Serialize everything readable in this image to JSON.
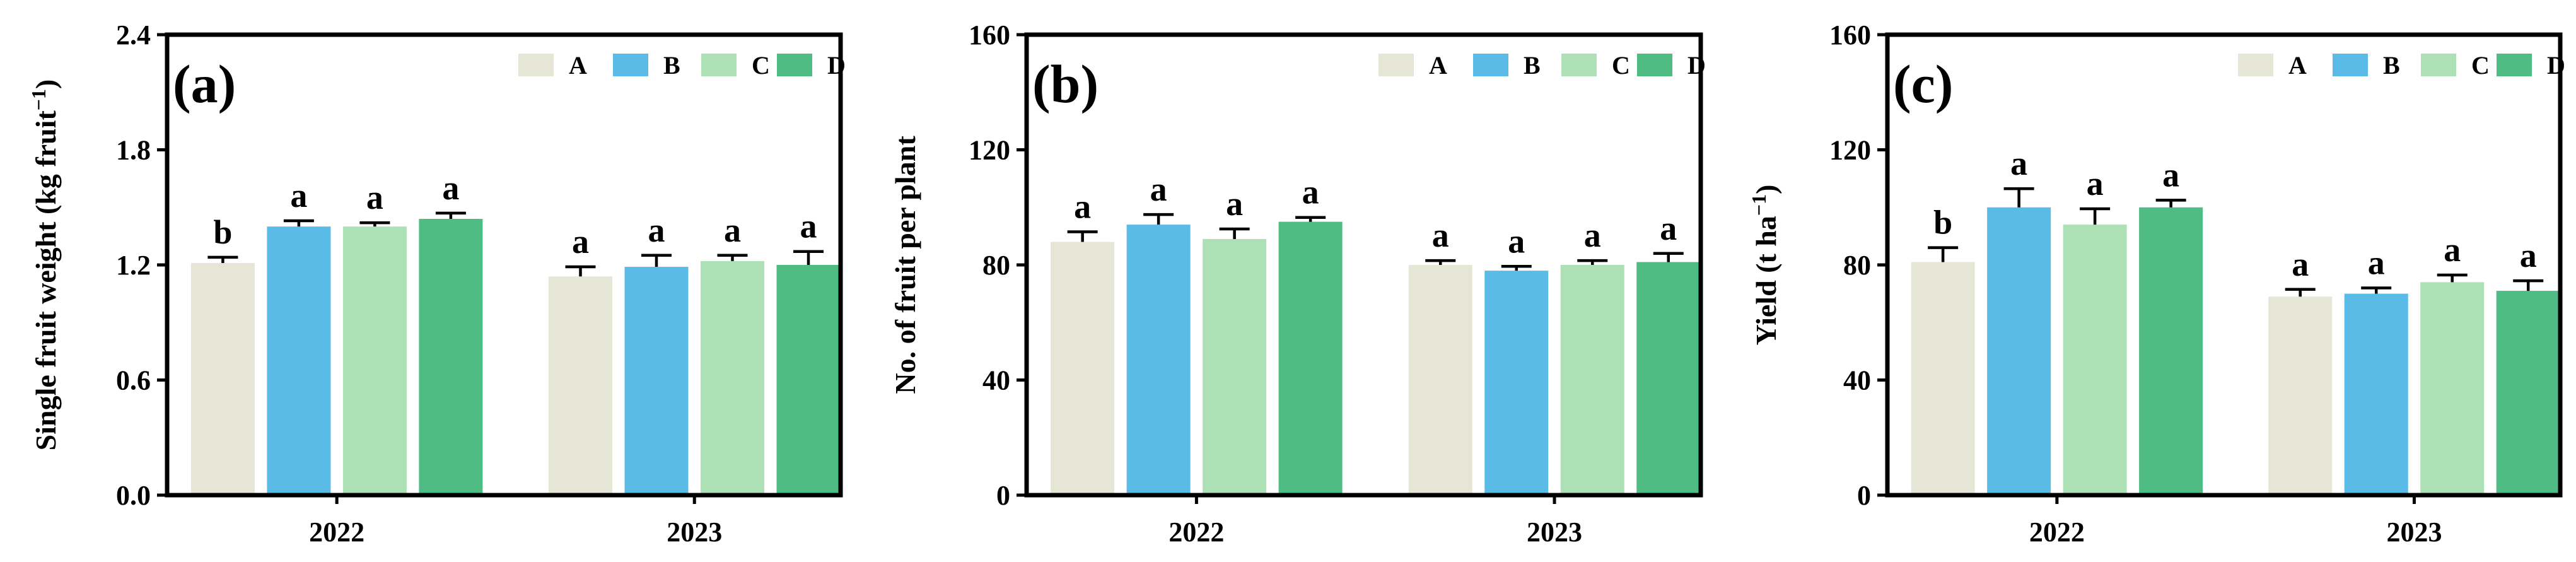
{
  "colors": {
    "A": "#e6e6d6",
    "B": "#5bbbe7",
    "C": "#ade0b5",
    "D": "#4fbc84"
  },
  "legend": [
    "A",
    "B",
    "C",
    "D"
  ],
  "panels": [
    {
      "label": "(a)",
      "ylabel": "Single fruit weight (kg fruit",
      "ylabel_sup": "−1",
      "ylabel_end": ")",
      "yticks": [
        "0.0",
        "0.6",
        "1.2",
        "1.8",
        "2.4"
      ]
    },
    {
      "label": "(b)",
      "ylabel": "No. of fruit per plant",
      "ylabel_sup": "",
      "ylabel_end": "",
      "yticks": [
        "0",
        "40",
        "80",
        "120",
        "160"
      ]
    },
    {
      "label": "(c)",
      "ylabel": "Yield (t ha",
      "ylabel_sup": "−1",
      "ylabel_end": ")",
      "yticks": [
        "0",
        "40",
        "80",
        "120",
        "160"
      ]
    }
  ],
  "chart_data": [
    {
      "type": "bar",
      "title": "(a)",
      "ylabel": "Single fruit weight (kg fruit−1)",
      "ylim": [
        0,
        2.4
      ],
      "yticks": [
        0.0,
        0.6,
        1.2,
        1.8,
        2.4
      ],
      "categories": [
        "2022",
        "2023"
      ],
      "legend_position": "top-right",
      "series": [
        {
          "name": "A",
          "values": [
            1.21,
            1.14
          ],
          "errors": [
            0.03,
            0.05
          ],
          "letters": [
            "b",
            "a"
          ]
        },
        {
          "name": "B",
          "values": [
            1.4,
            1.19
          ],
          "errors": [
            0.03,
            0.06
          ],
          "letters": [
            "a",
            "a"
          ]
        },
        {
          "name": "C",
          "values": [
            1.4,
            1.22
          ],
          "errors": [
            0.02,
            0.03
          ],
          "letters": [
            "a",
            "a"
          ]
        },
        {
          "name": "D",
          "values": [
            1.44,
            1.2
          ],
          "errors": [
            0.03,
            0.07
          ],
          "letters": [
            "a",
            "a"
          ]
        }
      ]
    },
    {
      "type": "bar",
      "title": "(b)",
      "ylabel": "No. of fruit per plant",
      "ylim": [
        0,
        160
      ],
      "yticks": [
        0,
        40,
        80,
        120,
        160
      ],
      "categories": [
        "2022",
        "2023"
      ],
      "legend_position": "top-right",
      "series": [
        {
          "name": "A",
          "values": [
            88,
            80
          ],
          "errors": [
            3.5,
            1.5
          ],
          "letters": [
            "a",
            "a"
          ]
        },
        {
          "name": "B",
          "values": [
            94,
            78
          ],
          "errors": [
            3.5,
            1.5
          ],
          "letters": [
            "a",
            "a"
          ]
        },
        {
          "name": "C",
          "values": [
            89,
            80
          ],
          "errors": [
            3.5,
            1.5
          ],
          "letters": [
            "a",
            "a"
          ]
        },
        {
          "name": "D",
          "values": [
            95,
            81
          ],
          "errors": [
            1.5,
            3.0
          ],
          "letters": [
            "a",
            "a"
          ]
        }
      ]
    },
    {
      "type": "bar",
      "title": "(c)",
      "ylabel": "Yield (t ha−1)",
      "ylim": [
        0,
        160
      ],
      "yticks": [
        0,
        40,
        80,
        120,
        160
      ],
      "categories": [
        "2022",
        "2023"
      ],
      "legend_position": "top-right",
      "series": [
        {
          "name": "A",
          "values": [
            81,
            69
          ],
          "errors": [
            5,
            2.5
          ],
          "letters": [
            "b",
            "a"
          ]
        },
        {
          "name": "B",
          "values": [
            100,
            70
          ],
          "errors": [
            6.5,
            2.0
          ],
          "letters": [
            "a",
            "a"
          ]
        },
        {
          "name": "C",
          "values": [
            94,
            74
          ],
          "errors": [
            5.5,
            2.5
          ],
          "letters": [
            "a",
            "a"
          ]
        },
        {
          "name": "D",
          "values": [
            100,
            71
          ],
          "errors": [
            2.5,
            3.5
          ],
          "letters": [
            "a",
            "a"
          ]
        }
      ]
    }
  ]
}
